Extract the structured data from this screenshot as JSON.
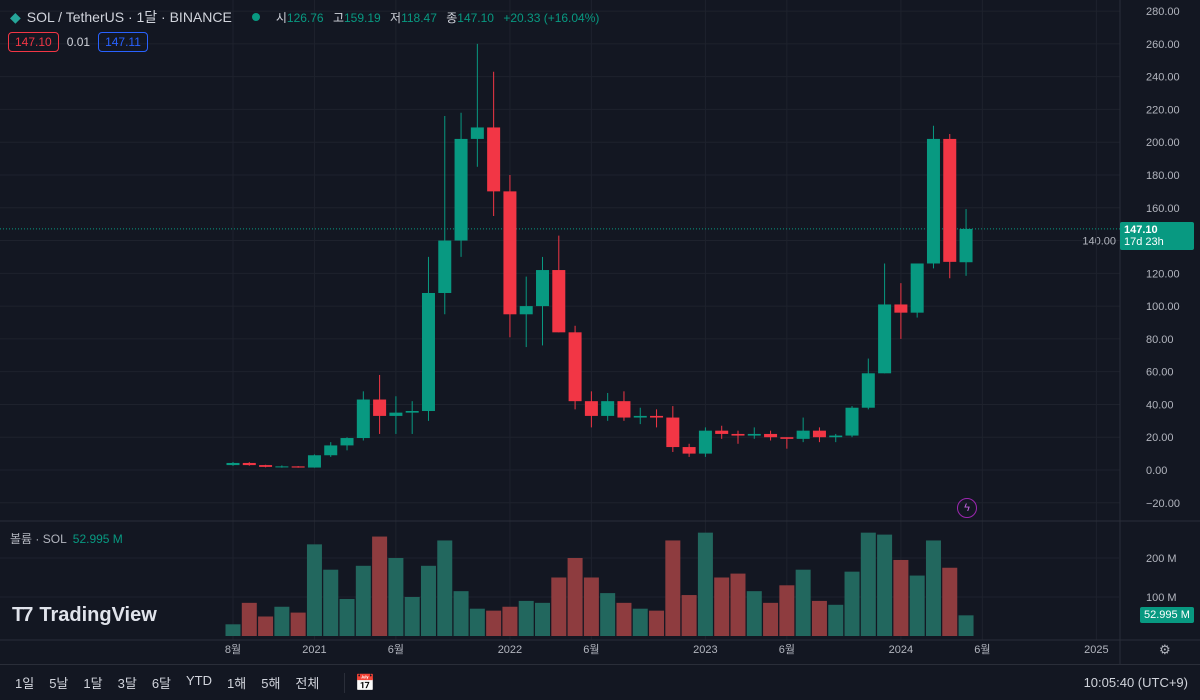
{
  "header": {
    "symbol": "SOL / TetherUS · 1달 · BINANCE",
    "status_color": "#089981",
    "open_label": "시",
    "open": "126.76",
    "high_label": "고",
    "high": "159.19",
    "low_label": "저",
    "low": "118.47",
    "close_label": "종",
    "close": "147.10",
    "change": "+20.33 (+16.04%)"
  },
  "quote": {
    "sell": "147.10",
    "spread": "0.01",
    "buy": "147.11"
  },
  "volume_legend": {
    "label": "볼륨 · SOL",
    "value": "52.995 M"
  },
  "logo": "TradingView",
  "last_price": {
    "price": "147.10",
    "countdown": "17d 23h"
  },
  "volume_last": "52.995 M",
  "range_buttons": [
    "1일",
    "5날",
    "1달",
    "3달",
    "6달",
    "YTD",
    "1해",
    "5해",
    "전체"
  ],
  "clock": "10:05:40 (UTC+9)",
  "colors": {
    "up": "#089981",
    "down": "#f23645",
    "vol_up": "#22675e",
    "vol_down": "#8e3c3f",
    "background": "#131722"
  },
  "chart_data": {
    "type": "candlestick",
    "interval": "1M",
    "price_ticks": [
      "280.00",
      "260.00",
      "240.00",
      "220.00",
      "200.00",
      "180.00",
      "160.00",
      "140.00",
      "120.00",
      "100.00",
      "80.00",
      "60.00",
      "40.00",
      "20.00",
      "0.00",
      "−20.00"
    ],
    "volume_ticks": [
      "200 M",
      "100 M"
    ],
    "time_ticks": [
      {
        "label": "8월",
        "month": "2020-08"
      },
      {
        "label": "2021",
        "month": "2021-01"
      },
      {
        "label": "6월",
        "month": "2021-06"
      },
      {
        "label": "2022",
        "month": "2022-01"
      },
      {
        "label": "6월",
        "month": "2022-06"
      },
      {
        "label": "2023",
        "month": "2023-01"
      },
      {
        "label": "6월",
        "month": "2023-06"
      },
      {
        "label": "2024",
        "month": "2024-01"
      },
      {
        "label": "6월",
        "month": "2024-06"
      },
      {
        "label": "2025",
        "month": "2025-01"
      }
    ],
    "ylim": [
      -30,
      285
    ],
    "candles": [
      [
        "2020-08",
        3.0,
        4.9,
        2.5,
        4.3,
        30
      ],
      [
        "2020-09",
        4.3,
        4.8,
        2.6,
        3.0,
        85
      ],
      [
        "2020-10",
        3.0,
        3.2,
        1.6,
        1.9,
        50
      ],
      [
        "2020-11",
        1.8,
        2.8,
        1.4,
        2.2,
        75
      ],
      [
        "2020-12",
        2.2,
        2.4,
        1.4,
        1.5,
        60
      ],
      [
        "2021-01",
        1.5,
        9.5,
        1.4,
        9.0,
        235
      ],
      [
        "2021-02",
        9.0,
        17,
        8,
        15,
        170
      ],
      [
        "2021-03",
        15,
        20,
        12,
        19.5,
        95
      ],
      [
        "2021-04",
        19.5,
        48,
        18,
        43,
        180
      ],
      [
        "2021-05",
        43,
        58,
        22,
        33,
        255
      ],
      [
        "2021-06",
        33,
        45,
        22,
        35,
        200
      ],
      [
        "2021-07",
        35,
        42,
        22,
        36,
        100
      ],
      [
        "2021-08",
        36,
        130,
        30,
        108,
        180
      ],
      [
        "2021-09",
        108,
        216,
        95,
        140,
        245
      ],
      [
        "2021-10",
        140,
        218,
        130,
        202,
        115
      ],
      [
        "2021-11",
        202,
        260,
        185,
        209,
        70
      ],
      [
        "2021-12",
        209,
        243,
        155,
        170,
        65
      ],
      [
        "2022-01",
        170,
        180,
        81,
        95,
        75
      ],
      [
        "2022-02",
        95,
        118,
        75,
        100,
        90
      ],
      [
        "2022-03",
        100,
        130,
        76,
        122,
        85
      ],
      [
        "2022-04",
        122,
        143,
        84,
        84,
        150
      ],
      [
        "2022-05",
        84,
        88,
        37,
        42,
        200
      ],
      [
        "2022-06",
        42,
        48,
        26,
        33,
        150
      ],
      [
        "2022-07",
        33,
        47,
        30,
        42,
        110
      ],
      [
        "2022-08",
        42,
        48,
        30,
        32,
        85
      ],
      [
        "2022-09",
        32,
        38,
        28,
        33,
        70
      ],
      [
        "2022-10",
        33,
        37,
        26,
        32,
        65
      ],
      [
        "2022-11",
        32,
        39,
        11,
        14,
        245
      ],
      [
        "2022-12",
        14,
        16,
        8,
        10,
        105
      ],
      [
        "2023-01",
        10,
        26,
        8,
        24,
        265
      ],
      [
        "2023-02",
        24,
        27,
        19,
        22,
        150
      ],
      [
        "2023-03",
        22,
        24,
        16,
        21,
        160
      ],
      [
        "2023-04",
        21,
        26,
        19,
        22,
        115
      ],
      [
        "2023-05",
        22,
        24,
        18,
        20,
        85
      ],
      [
        "2023-06",
        20,
        20,
        13,
        19,
        130
      ],
      [
        "2023-07",
        19,
        32,
        17,
        24,
        170
      ],
      [
        "2023-08",
        24,
        26,
        17,
        20,
        90
      ],
      [
        "2023-09",
        20,
        22,
        17,
        21,
        80
      ],
      [
        "2023-10",
        21,
        39,
        20,
        38,
        165
      ],
      [
        "2023-11",
        38,
        68,
        37,
        59,
        265
      ],
      [
        "2023-12",
        59,
        126,
        59,
        101,
        260
      ],
      [
        "2024-01",
        101,
        114,
        80,
        96,
        195
      ],
      [
        "2024-02",
        96,
        126,
        93,
        126,
        155
      ],
      [
        "2024-03",
        126,
        210,
        123,
        202,
        245
      ],
      [
        "2024-04",
        202,
        205,
        117,
        127,
        175
      ],
      [
        "2024-05",
        126.76,
        159.19,
        118.47,
        147.1,
        52.995
      ]
    ]
  }
}
